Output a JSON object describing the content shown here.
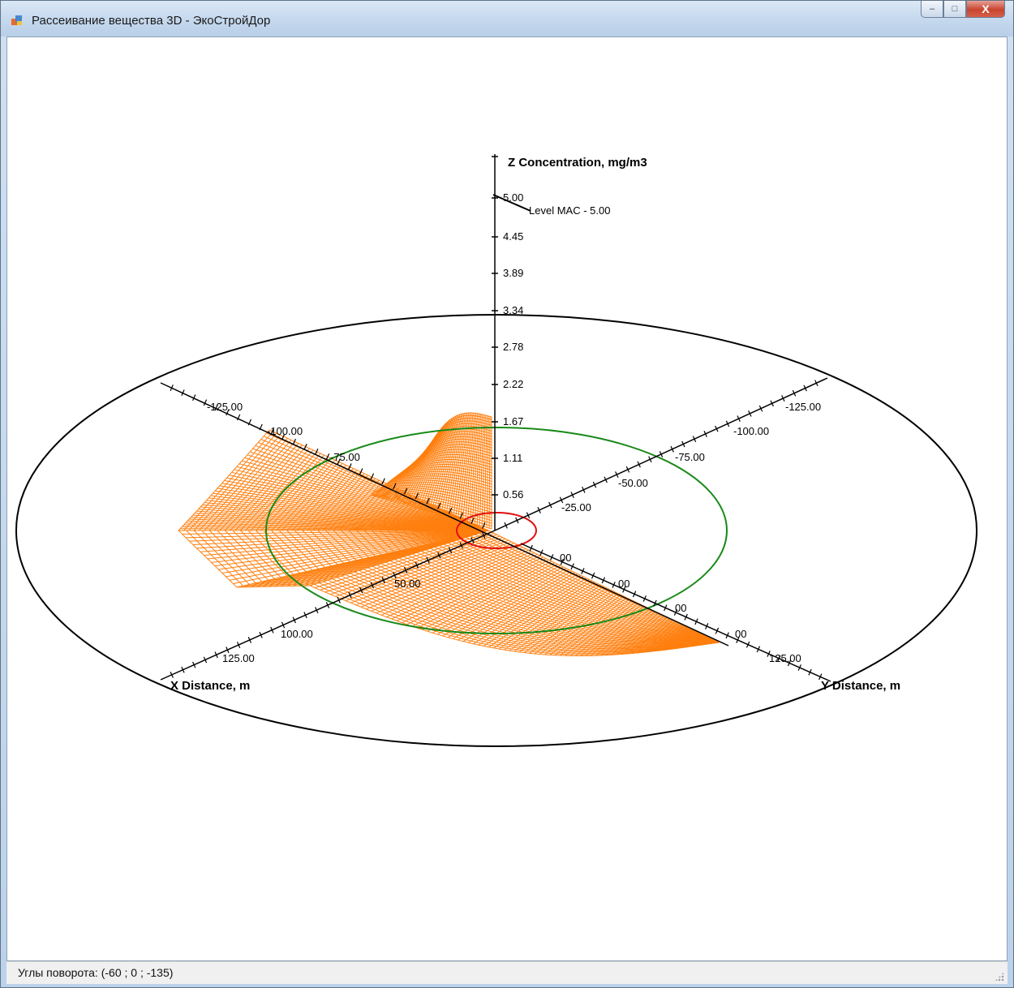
{
  "window": {
    "title": "Рассеивание вещества 3D - ЭкоСтройДор",
    "buttons": {
      "minimize": "–",
      "maximize": "□",
      "close": "X"
    }
  },
  "statusbar": {
    "text": "Углы поворота: (-60 ; 0 ; -135)"
  },
  "colors": {
    "surface": "#ff7f0e",
    "outer_ring": "#000000",
    "inner_ring": "#1a8a1a",
    "source_ring": "#e01010"
  },
  "chart_data": {
    "type": "surface-3d",
    "z_axis": {
      "title": "Z Concentration, mg/m3",
      "ticks": [
        "0.56",
        "1.11",
        "1.67",
        "2.22",
        "2.78",
        "3.34",
        "3.89",
        "4.45",
        "5.00"
      ],
      "mac_label": "Level MAC - 5.00"
    },
    "x_axis": {
      "title": "X Distance, m",
      "ticks_back": [
        "-125.00",
        "-100.00",
        "-75.00"
      ],
      "ticks_front": [
        "-25.00",
        "-50.00",
        "-75.00",
        "-100.00",
        "-125.00"
      ],
      "front_labels": [
        "100.00",
        "125.00"
      ],
      "front_partial": [
        "50.00"
      ]
    },
    "y_axis": {
      "title": "Y Distance, m",
      "ticks_back": [
        "-25.00",
        "-50.00",
        "-75.00",
        "-100.00",
        "-125.00"
      ],
      "front_labels": [
        "00",
        "00",
        "00",
        "00",
        "125.00"
      ]
    },
    "rotation": [
      -60,
      0,
      -135
    ]
  }
}
